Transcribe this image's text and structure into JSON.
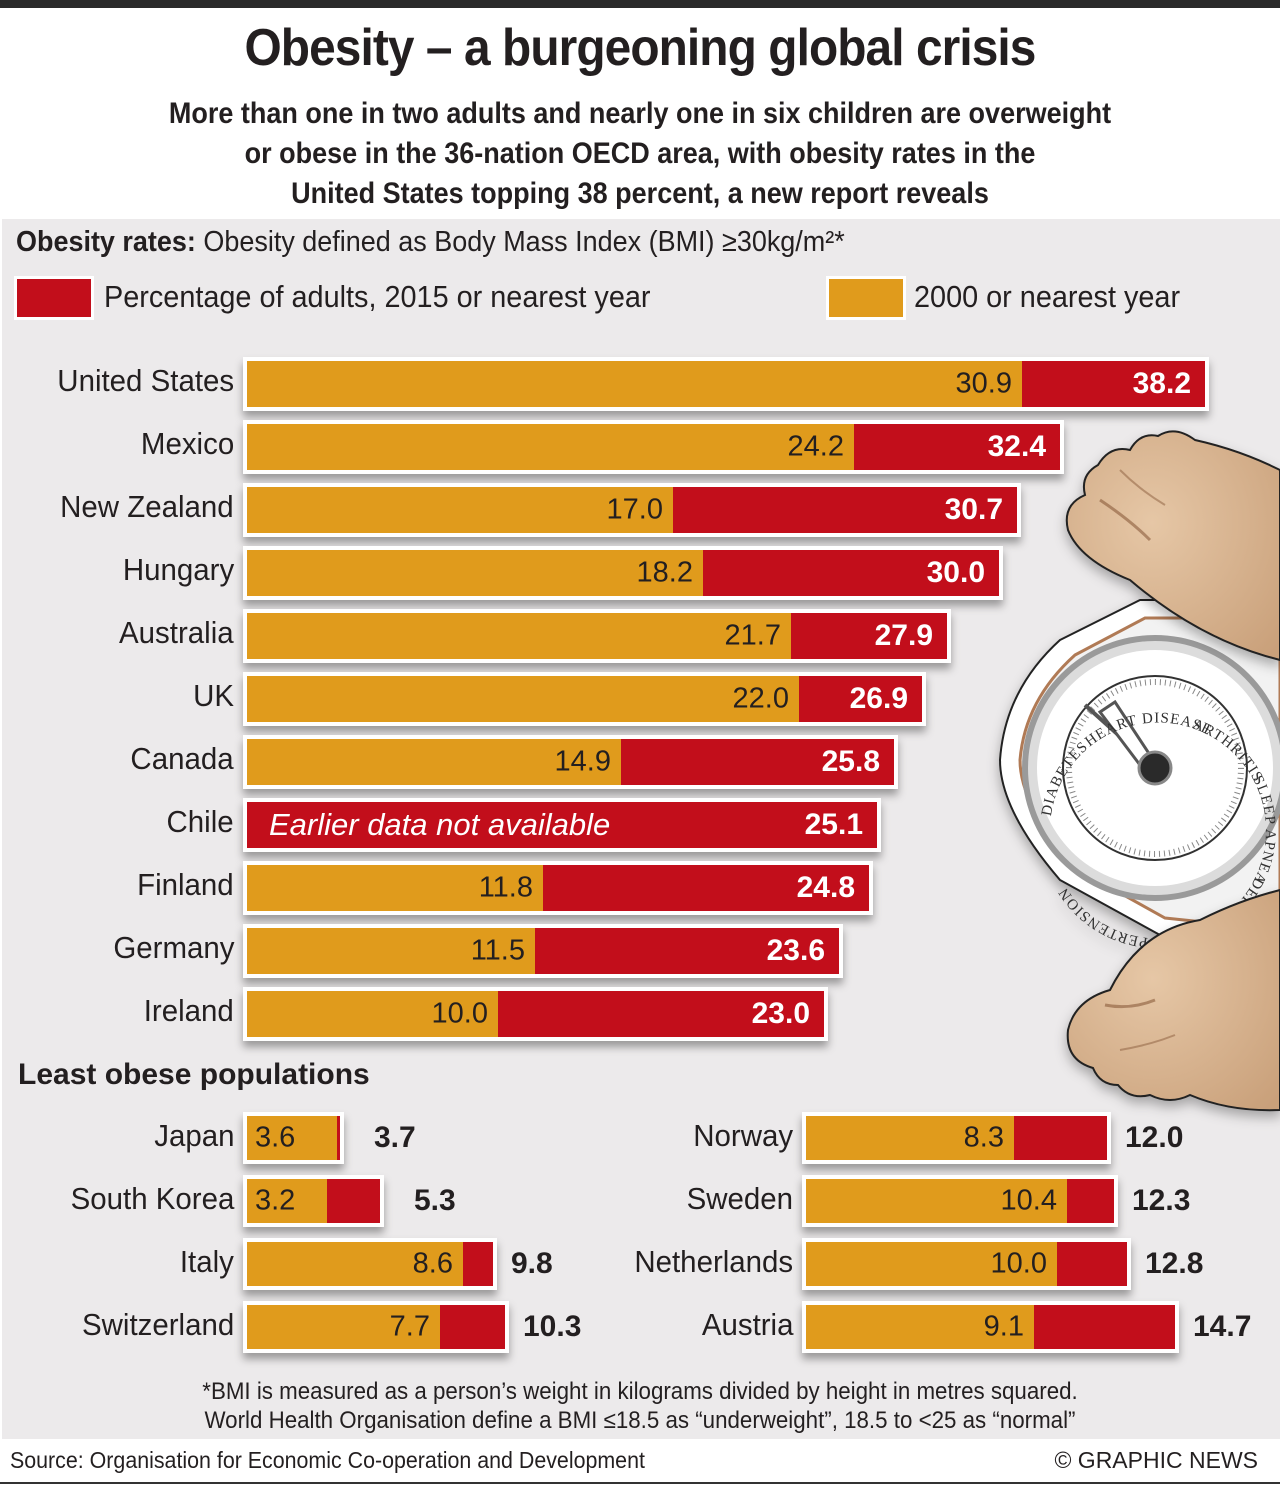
{
  "header": {
    "title": "Obesity – a burgeoning global crisis",
    "subtitle_lines": [
      "More than one in two adults and nearly one in six children are overweight",
      "or obese in the 36-nation OECD area, with obesity rates in the",
      "United States topping 38 percent, a new report reveals"
    ]
  },
  "definition": {
    "label": "Obesity rates:",
    "text": " Obesity defined as Body Mass Index (BMI) ≥30kg/m²*"
  },
  "legend": [
    {
      "label": "Percentage of adults, 2015 or nearest year",
      "color": "#c20e1b"
    },
    {
      "label": "2000 or nearest year",
      "color": "#e09b1c"
    }
  ],
  "scale_labels": [
    "HEART DISEASE",
    "ARTHRITIS",
    "SLEEP APNEA",
    "DEPRESSION",
    "HYPERTENSION",
    "DIABETES"
  ],
  "chart_data": [
    {
      "type": "bar",
      "orientation": "horizontal",
      "title": "Obesity rates",
      "unit": "percent of adults",
      "categories": [
        "United States",
        "Mexico",
        "New Zealand",
        "Hungary",
        "Australia",
        "UK",
        "Canada",
        "Chile",
        "Finland",
        "Germany",
        "Ireland"
      ],
      "series": [
        {
          "name": "2000 or nearest year",
          "color": "#e09b1c",
          "values": [
            30.9,
            24.2,
            17.0,
            18.2,
            21.7,
            22.0,
            14.9,
            null,
            11.8,
            11.5,
            10.0
          ]
        },
        {
          "name": "Percentage of adults, 2015 or nearest year",
          "color": "#c20e1b",
          "values": [
            38.2,
            32.4,
            30.7,
            30.0,
            27.9,
            26.9,
            25.8,
            25.1,
            24.8,
            23.6,
            23.0
          ]
        }
      ],
      "annotations": [
        {
          "category": "Chile",
          "text": "Earlier data not available"
        }
      ],
      "xlim": [
        0,
        38.2
      ]
    },
    {
      "type": "bar",
      "orientation": "horizontal",
      "title": "Least obese populations",
      "unit": "percent of adults",
      "categories": [
        "Japan",
        "South Korea",
        "Italy",
        "Switzerland",
        "Norway",
        "Sweden",
        "Netherlands",
        "Austria"
      ],
      "series": [
        {
          "name": "2000 or nearest year",
          "color": "#e09b1c",
          "values": [
            3.6,
            3.2,
            8.6,
            7.7,
            8.3,
            10.4,
            10.0,
            9.1
          ]
        },
        {
          "name": "Percentage of adults, 2015 or nearest year",
          "color": "#c20e1b",
          "values": [
            3.7,
            5.3,
            9.8,
            10.3,
            12.0,
            12.3,
            12.8,
            14.7
          ]
        }
      ]
    }
  ],
  "main_rows": [
    {
      "country": "United States",
      "v2000": "30.9",
      "v2015": "38.2",
      "a": 30.9,
      "b": 38.2
    },
    {
      "country": "Mexico",
      "v2000": "24.2",
      "v2015": "32.4",
      "a": 24.2,
      "b": 32.4
    },
    {
      "country": "New Zealand",
      "v2000": "17.0",
      "v2015": "30.7",
      "a": 17.0,
      "b": 30.7
    },
    {
      "country": "Hungary",
      "v2000": "18.2",
      "v2015": "30.0",
      "a": 18.2,
      "b": 30.0
    },
    {
      "country": "Australia",
      "v2000": "21.7",
      "v2015": "27.9",
      "a": 21.7,
      "b": 27.9
    },
    {
      "country": "UK",
      "v2000": "22.0",
      "v2015": "26.9",
      "a": 22.0,
      "b": 26.9
    },
    {
      "country": "Canada",
      "v2000": "14.9",
      "v2015": "25.8",
      "a": 14.9,
      "b": 25.8
    },
    {
      "country": "Chile",
      "v2000": "",
      "v2015": "25.1",
      "a": 0,
      "b": 25.1,
      "note": "Earlier data not available"
    },
    {
      "country": "Finland",
      "v2000": "11.8",
      "v2015": "24.8",
      "a": 11.8,
      "b": 24.8
    },
    {
      "country": "Germany",
      "v2000": "11.5",
      "v2015": "23.6",
      "a": 11.5,
      "b": 23.6
    },
    {
      "country": "Ireland",
      "v2000": "10.0",
      "v2015": "23.0",
      "a": 10.0,
      "b": 23.0
    }
  ],
  "least": {
    "title": "Least obese populations",
    "left": [
      {
        "country": "Japan",
        "v2000": "3.6",
        "v2015": "3.7",
        "a": 3.6,
        "b": 3.7
      },
      {
        "country": "South Korea",
        "v2000": "3.2",
        "v2015": "5.3",
        "a": 3.2,
        "b": 5.3
      },
      {
        "country": "Italy",
        "v2000": "8.6",
        "v2015": "9.8",
        "a": 8.6,
        "b": 9.8
      },
      {
        "country": "Switzerland",
        "v2000": "7.7",
        "v2015": "10.3",
        "a": 7.7,
        "b": 10.3
      }
    ],
    "right": [
      {
        "country": "Norway",
        "v2000": "8.3",
        "v2015": "12.0",
        "a": 8.3,
        "b": 12.0
      },
      {
        "country": "Sweden",
        "v2000": "10.4",
        "v2015": "12.3",
        "a": 10.4,
        "b": 12.3
      },
      {
        "country": "Netherlands",
        "v2000": "10.0",
        "v2015": "12.8",
        "a": 10.0,
        "b": 12.8
      },
      {
        "country": "Austria",
        "v2000": "9.1",
        "v2015": "14.7",
        "a": 9.1,
        "b": 14.7
      }
    ]
  },
  "footnote": [
    "*BMI is measured as a person’s weight in kilograms divided by height in metres squared.",
    "World Health Organisation define a BMI ≤18.5 as “underweight”, 18.5 to <25 as “normal”"
  ],
  "source": "Source: Organisation for Economic Co-operation and Development",
  "credit": "© GRAPHIC NEWS"
}
